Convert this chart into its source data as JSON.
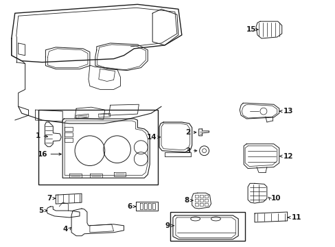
{
  "bg_color": "#ffffff",
  "line_color": "#1a1a1a",
  "fig_width": 4.89,
  "fig_height": 3.6,
  "dpi": 100,
  "label_fs": 7.5,
  "lw_main": 0.8,
  "lw_detail": 0.5
}
